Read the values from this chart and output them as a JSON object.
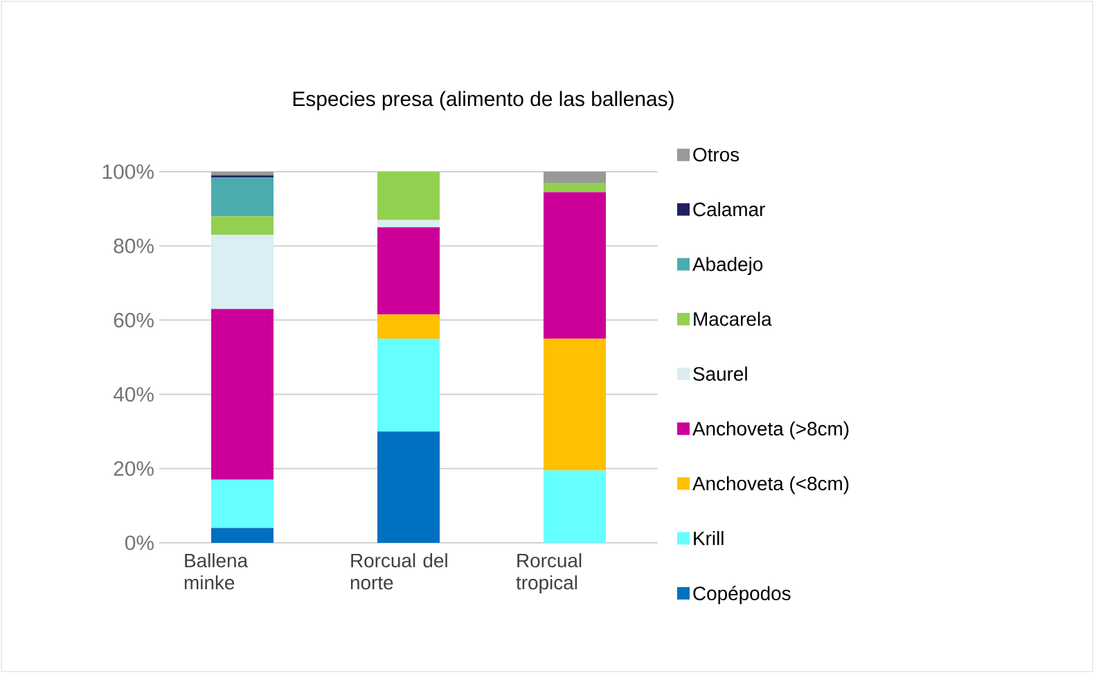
{
  "chart_data": {
    "type": "bar",
    "stacked": true,
    "title": "Especies presa (alimento de las ballenas)",
    "categories": [
      "Ballena minke",
      "Rorcual del norte",
      "Rorcual tropical"
    ],
    "series": [
      {
        "name": "Copépodos",
        "color": "#0070c0",
        "values": [
          4,
          30,
          0
        ]
      },
      {
        "name": "Krill",
        "color": "#66ffff",
        "values": [
          13,
          25,
          19.5
        ]
      },
      {
        "name": "Anchoveta (<8cm)",
        "color": "#ffc000",
        "values": [
          0,
          6.5,
          35.5
        ]
      },
      {
        "name": "Anchoveta (>8cm)",
        "color": "#cc0099",
        "values": [
          46,
          23.5,
          39.5
        ]
      },
      {
        "name": "Saurel",
        "color": "#daeef3",
        "values": [
          20,
          2,
          0
        ]
      },
      {
        "name": "Macarela",
        "color": "#92d050",
        "values": [
          5,
          13,
          2.5
        ]
      },
      {
        "name": "Abadejo",
        "color": "#4bacb0",
        "values": [
          10.5,
          0,
          0
        ]
      },
      {
        "name": "Calamar",
        "color": "#1f1f5f",
        "values": [
          0.5,
          0,
          0
        ]
      },
      {
        "name": "Otros",
        "color": "#999999",
        "values": [
          1,
          0,
          3
        ]
      }
    ],
    "ylim": [
      0,
      100
    ],
    "yticks": [
      {
        "value": 0,
        "label": "0%"
      },
      {
        "value": 20,
        "label": "20%"
      },
      {
        "value": 40,
        "label": "40%"
      },
      {
        "value": 60,
        "label": "60%"
      },
      {
        "value": 80,
        "label": "80%"
      },
      {
        "value": 100,
        "label": "100%"
      }
    ],
    "grid": "y",
    "legend": "right"
  }
}
